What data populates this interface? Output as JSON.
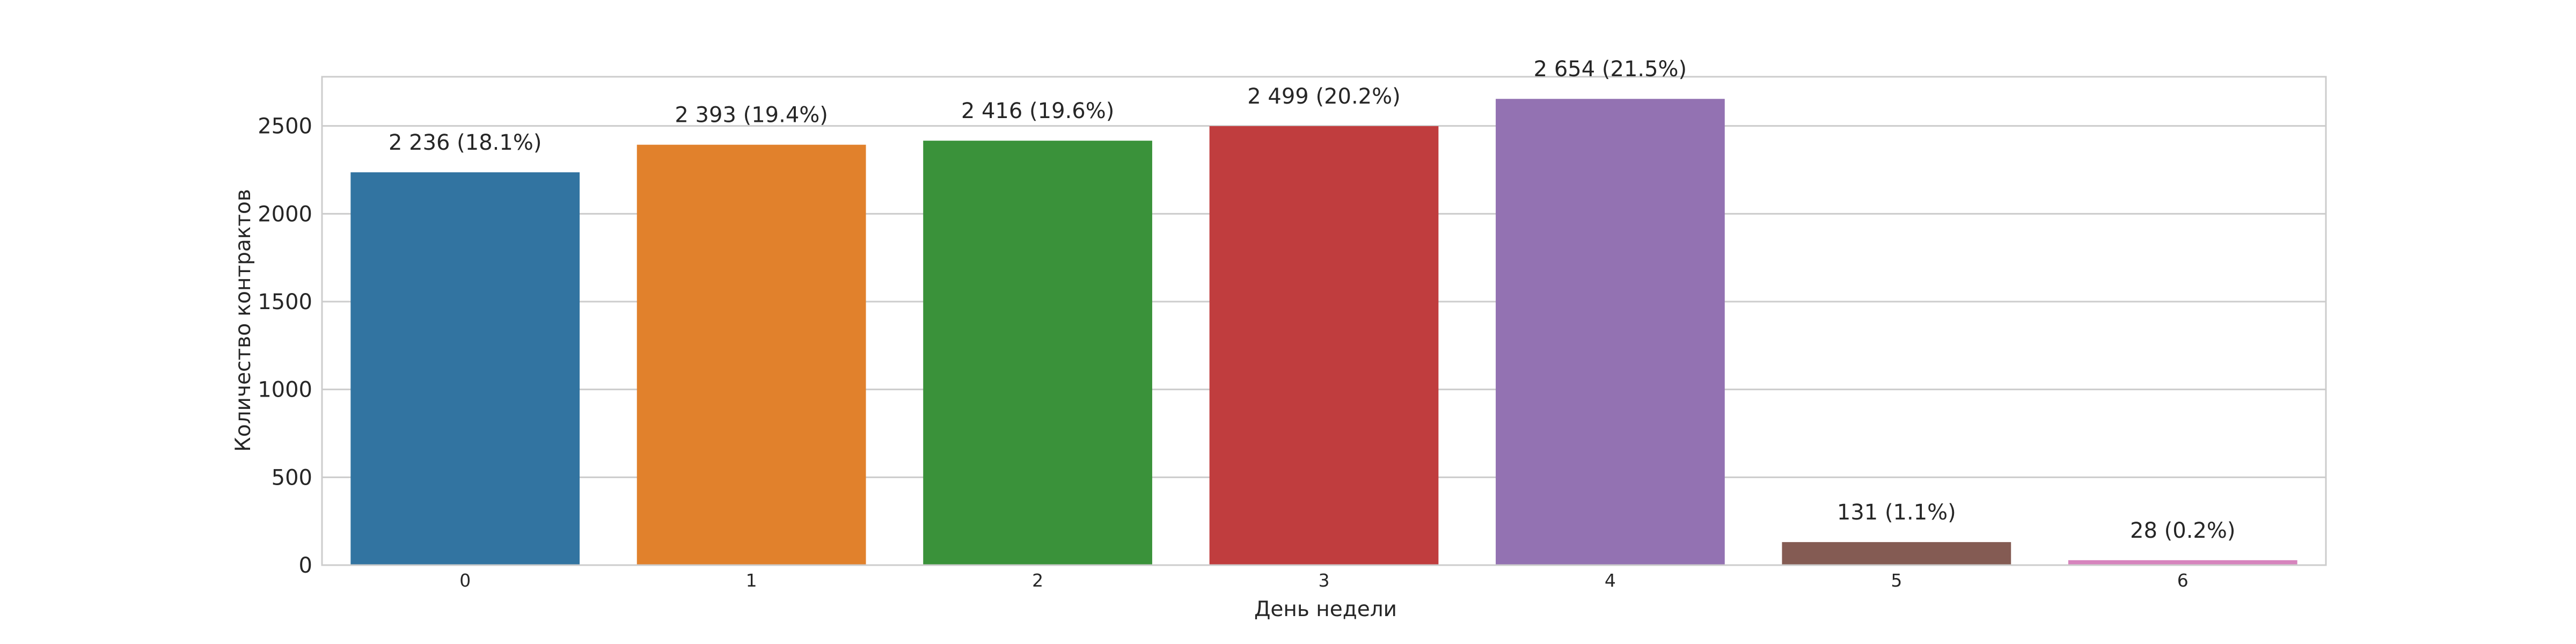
{
  "chart_data": {
    "type": "bar",
    "title": "",
    "xlabel": "День недели",
    "ylabel": "Количество контрактов",
    "categories": [
      "0",
      "1",
      "2",
      "3",
      "4",
      "5",
      "6"
    ],
    "values": [
      2236,
      2393,
      2416,
      2499,
      2654,
      131,
      28
    ],
    "data_labels": [
      "2 236 (18.1%)",
      "2 393 (19.4%)",
      "2 416 (19.6%)",
      "2 499 (20.2%)",
      "2 654 (21.5%)",
      "131 (1.1%)",
      "28 (0.2%)"
    ],
    "ylim": [
      0,
      2780
    ],
    "yticks": [
      0,
      500,
      1000,
      1500,
      2000,
      2500
    ],
    "grid": "horizontal",
    "legend": "none",
    "colors": [
      "#3274a1",
      "#e1812c",
      "#3a923a",
      "#c03d3e",
      "#9372b2",
      "#845b53",
      "#d684bd"
    ]
  }
}
